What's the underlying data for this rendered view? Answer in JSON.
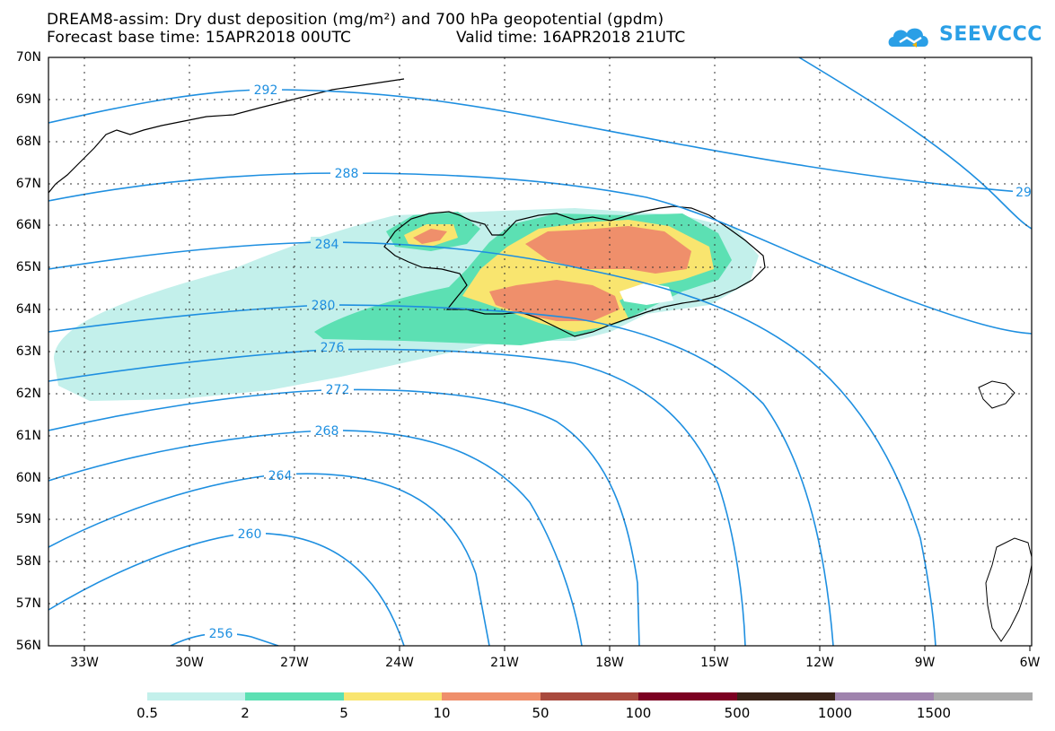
{
  "header": {
    "title_line1": "DREAM8-assim: Dry dust deposition (mg/m²) and 700 hPa geopotential (gpdm)",
    "title_line2": "Forecast base time: 15APR2018 00UTC",
    "valid_time": "Valid time: 16APR2018 21UTC",
    "logo_text": "SEEVCCC"
  },
  "map": {
    "lat_labels": [
      "70N",
      "69N",
      "68N",
      "67N",
      "66N",
      "65N",
      "64N",
      "63N",
      "62N",
      "61N",
      "60N",
      "59N",
      "58N",
      "57N",
      "56N"
    ],
    "lon_labels": [
      "33W",
      "30W",
      "27W",
      "24W",
      "21W",
      "18W",
      "15W",
      "12W",
      "9W",
      "6W"
    ],
    "contour_labels": [
      "292",
      "288",
      "284",
      "280",
      "276",
      "272",
      "268",
      "264",
      "260",
      "256",
      "29"
    ]
  },
  "colorbar": {
    "colors": [
      "#c3f0eb",
      "#5ce0b3",
      "#f9e56f",
      "#ef8f6b",
      "#a94a3e",
      "#7c0022",
      "#3a2419",
      "#9f83ad",
      "#aaaaaa"
    ],
    "labels": [
      "0.5",
      "2",
      "5",
      "10",
      "50",
      "100",
      "500",
      "1000",
      "1500"
    ]
  }
}
